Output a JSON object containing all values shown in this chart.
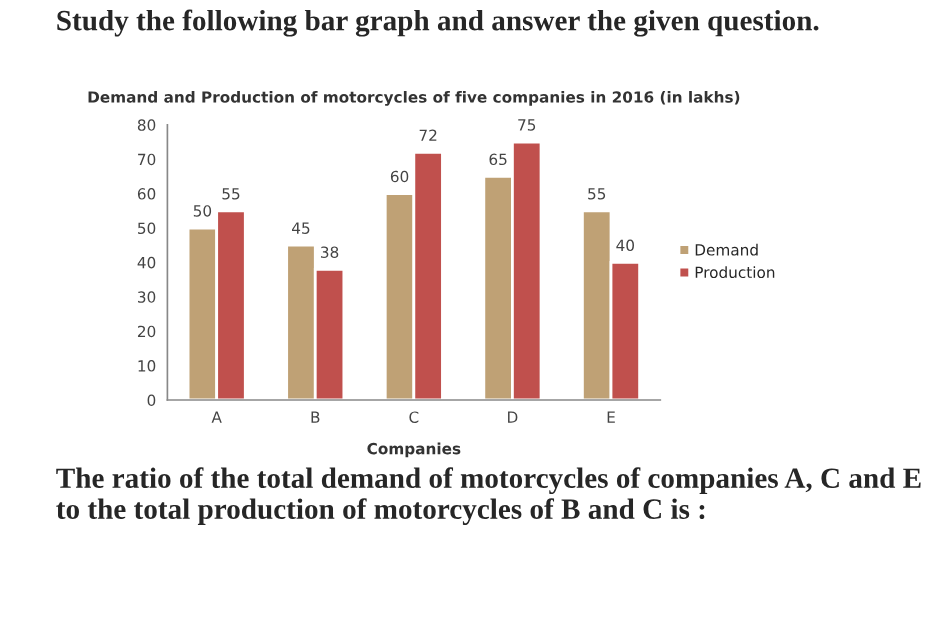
{
  "chart_data": {
    "type": "bar",
    "title": "Demand and Production of motorcycles of five companies in 2016 (in lakhs)",
    "xlabel": "Companies",
    "categories": [
      "A",
      "B",
      "C",
      "D",
      "E"
    ],
    "series": [
      {
        "name": "Demand",
        "color": "#bfa175",
        "values": [
          50,
          45,
          60,
          65,
          55
        ]
      },
      {
        "name": "Production",
        "color": "#c0504d",
        "values": [
          55,
          38,
          72,
          75,
          40
        ]
      }
    ],
    "ylim": [
      0,
      80
    ],
    "yticks": [
      0,
      10,
      20,
      30,
      40,
      50,
      60,
      70,
      80
    ],
    "grid": false,
    "legend": "right",
    "data_labels": true,
    "annotations": [
      "Study the following bar graph and answer the given question.",
      "The ratio of the total demand of motorcycles of companies A, C and E to the total production of motorcycles of B and C is :"
    ]
  }
}
